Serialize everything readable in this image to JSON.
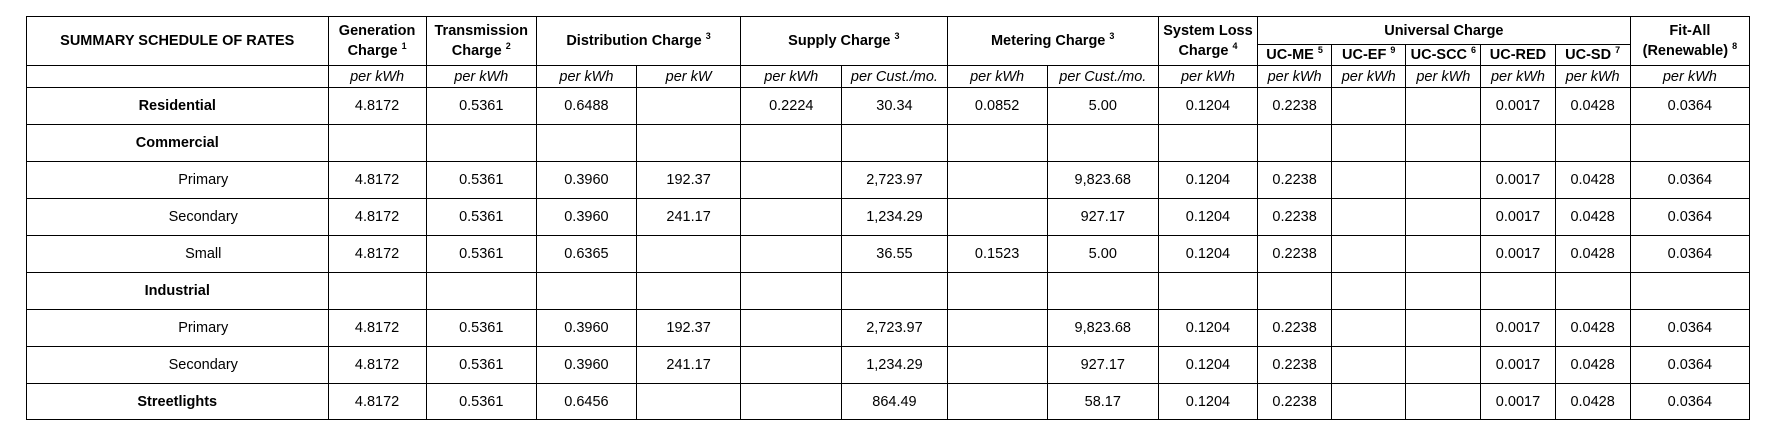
{
  "title": "SUMMARY SCHEDULE OF RATES",
  "headers": {
    "generation": {
      "line1": "Generation",
      "line2": "Charge",
      "sup": "1"
    },
    "transmission": {
      "line1": "Transmission",
      "line2": "Charge",
      "sup": "2"
    },
    "distribution": {
      "label": "Distribution Charge",
      "sup": "3"
    },
    "supply": {
      "label": "Supply Charge",
      "sup": "3"
    },
    "metering": {
      "label": "Metering Charge",
      "sup": "3"
    },
    "system_loss": {
      "line1": "System Loss",
      "line2": "Charge",
      "sup": "4"
    },
    "universal": {
      "label": "Universal Charge"
    },
    "fit_all": {
      "line1": "Fit-All",
      "line2": "(Renewable)",
      "sup": "8"
    },
    "uc_me": {
      "label": "UC-ME",
      "sup": "5"
    },
    "uc_ef": {
      "label": "UC-EF",
      "sup": "9"
    },
    "uc_scc": {
      "label": "UC-SCC",
      "sup": "6"
    },
    "uc_red": {
      "label": "UC-RED"
    },
    "uc_sd": {
      "label": "UC-SD",
      "sup": "7"
    }
  },
  "units": [
    "per kWh",
    "per kWh",
    "per kWh",
    "per kW",
    "per kWh",
    "per Cust./mo.",
    "per kWh",
    "per Cust./mo.",
    "per kWh",
    "per kWh",
    "per kWh",
    "per kWh",
    "per kWh",
    "per kWh",
    "per kWh"
  ],
  "rows": [
    {
      "label": "Residential",
      "bold": true,
      "cells": [
        "4.8172",
        "0.5361",
        "0.6488",
        "",
        "0.2224",
        "30.34",
        "0.0852",
        "5.00",
        "0.1204",
        "0.2238",
        "",
        "",
        "0.0017",
        "0.0428",
        "0.0364"
      ]
    },
    {
      "label": "Commercial",
      "bold": true,
      "cells": [
        "",
        "",
        "",
        "",
        "",
        "",
        "",
        "",
        "",
        "",
        "",
        "",
        "",
        "",
        ""
      ]
    },
    {
      "label": "Primary",
      "indent": true,
      "cells": [
        "4.8172",
        "0.5361",
        "0.3960",
        "192.37",
        "",
        "2,723.97",
        "",
        "9,823.68",
        "0.1204",
        "0.2238",
        "",
        "",
        "0.0017",
        "0.0428",
        "0.0364"
      ]
    },
    {
      "label": "Secondary",
      "indent": true,
      "cells": [
        "4.8172",
        "0.5361",
        "0.3960",
        "241.17",
        "",
        "1,234.29",
        "",
        "927.17",
        "0.1204",
        "0.2238",
        "",
        "",
        "0.0017",
        "0.0428",
        "0.0364"
      ]
    },
    {
      "label": "Small",
      "indent": true,
      "cells": [
        "4.8172",
        "0.5361",
        "0.6365",
        "",
        "",
        "36.55",
        "0.1523",
        "5.00",
        "0.1204",
        "0.2238",
        "",
        "",
        "0.0017",
        "0.0428",
        "0.0364"
      ]
    },
    {
      "label": "Industrial",
      "bold": true,
      "cells": [
        "",
        "",
        "",
        "",
        "",
        "",
        "",
        "",
        "",
        "",
        "",
        "",
        "",
        "",
        ""
      ]
    },
    {
      "label": "Primary",
      "indent": true,
      "cells": [
        "4.8172",
        "0.5361",
        "0.3960",
        "192.37",
        "",
        "2,723.97",
        "",
        "9,823.68",
        "0.1204",
        "0.2238",
        "",
        "",
        "0.0017",
        "0.0428",
        "0.0364"
      ]
    },
    {
      "label": "Secondary",
      "indent": true,
      "cells": [
        "4.8172",
        "0.5361",
        "0.3960",
        "241.17",
        "",
        "1,234.29",
        "",
        "927.17",
        "0.1204",
        "0.2238",
        "",
        "",
        "0.0017",
        "0.0428",
        "0.0364"
      ]
    },
    {
      "label": "Streetlights",
      "bold": true,
      "cells": [
        "4.8172",
        "0.5361",
        "0.6456",
        "",
        "",
        "864.49",
        "",
        "58.17",
        "0.1204",
        "0.2238",
        "",
        "",
        "0.0017",
        "0.0428",
        "0.0364"
      ]
    }
  ]
}
